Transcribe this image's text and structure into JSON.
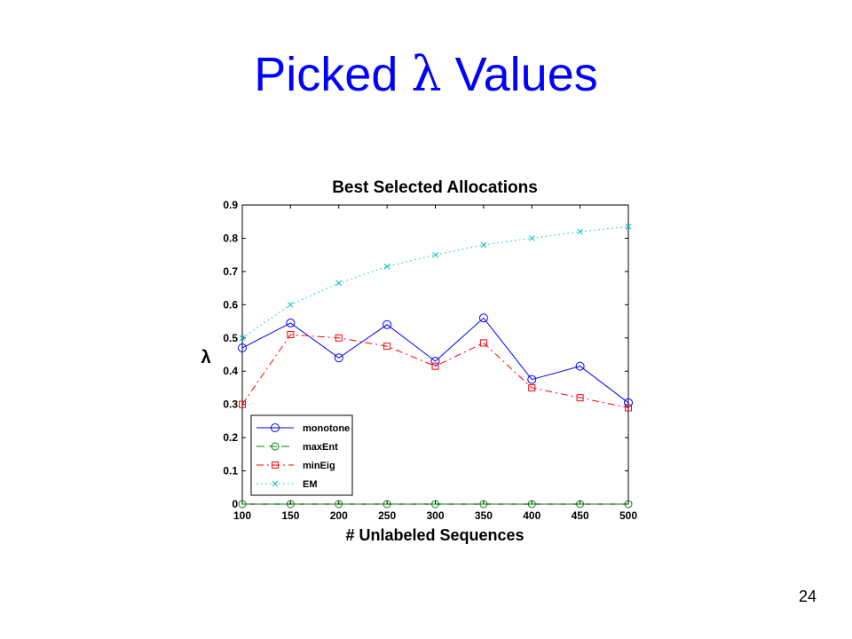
{
  "slide": {
    "title_prefix": "Picked",
    "title_symbol": "λ",
    "title_suffix": "Values",
    "page_number": "24"
  },
  "chart_data": {
    "type": "line",
    "title": "Best Selected Allocations",
    "xlabel": "# Unlabeled Sequences",
    "ylabel": "λ",
    "x": [
      100,
      150,
      200,
      250,
      300,
      350,
      400,
      450,
      500
    ],
    "xlim": [
      100,
      500
    ],
    "ylim": [
      0,
      0.9
    ],
    "xticks": [
      "100",
      "150",
      "200",
      "250",
      "300",
      "350",
      "400",
      "450",
      "500"
    ],
    "yticks": [
      "0",
      "0.1",
      "0.2",
      "0.3",
      "0.4",
      "0.5",
      "0.6",
      "0.7",
      "0.8",
      "0.9"
    ],
    "grid": false,
    "legend_position": "bottom-left",
    "series": [
      {
        "name": "monotone",
        "color": "#0000ff",
        "marker": "circle",
        "dash": "solid",
        "values": [
          0.47,
          0.545,
          0.44,
          0.54,
          0.43,
          0.56,
          0.375,
          0.415,
          0.305
        ]
      },
      {
        "name": "maxEnt",
        "color": "#008000",
        "marker": "circle-dash",
        "dash": "dashed",
        "values": [
          0.0,
          0.0,
          0.0,
          0.0,
          0.0,
          0.0,
          0.0,
          0.0,
          0.0
        ]
      },
      {
        "name": "minEig",
        "color": "#ff0000",
        "marker": "square",
        "dash": "dashdot",
        "values": [
          0.3,
          0.51,
          0.5,
          0.475,
          0.415,
          0.485,
          0.35,
          0.32,
          0.29
        ]
      },
      {
        "name": "EM",
        "color": "#00bfbf",
        "marker": "x",
        "dash": "dotted",
        "values": [
          0.5,
          0.6,
          0.665,
          0.715,
          0.75,
          0.78,
          0.8,
          0.82,
          0.835
        ]
      }
    ]
  }
}
